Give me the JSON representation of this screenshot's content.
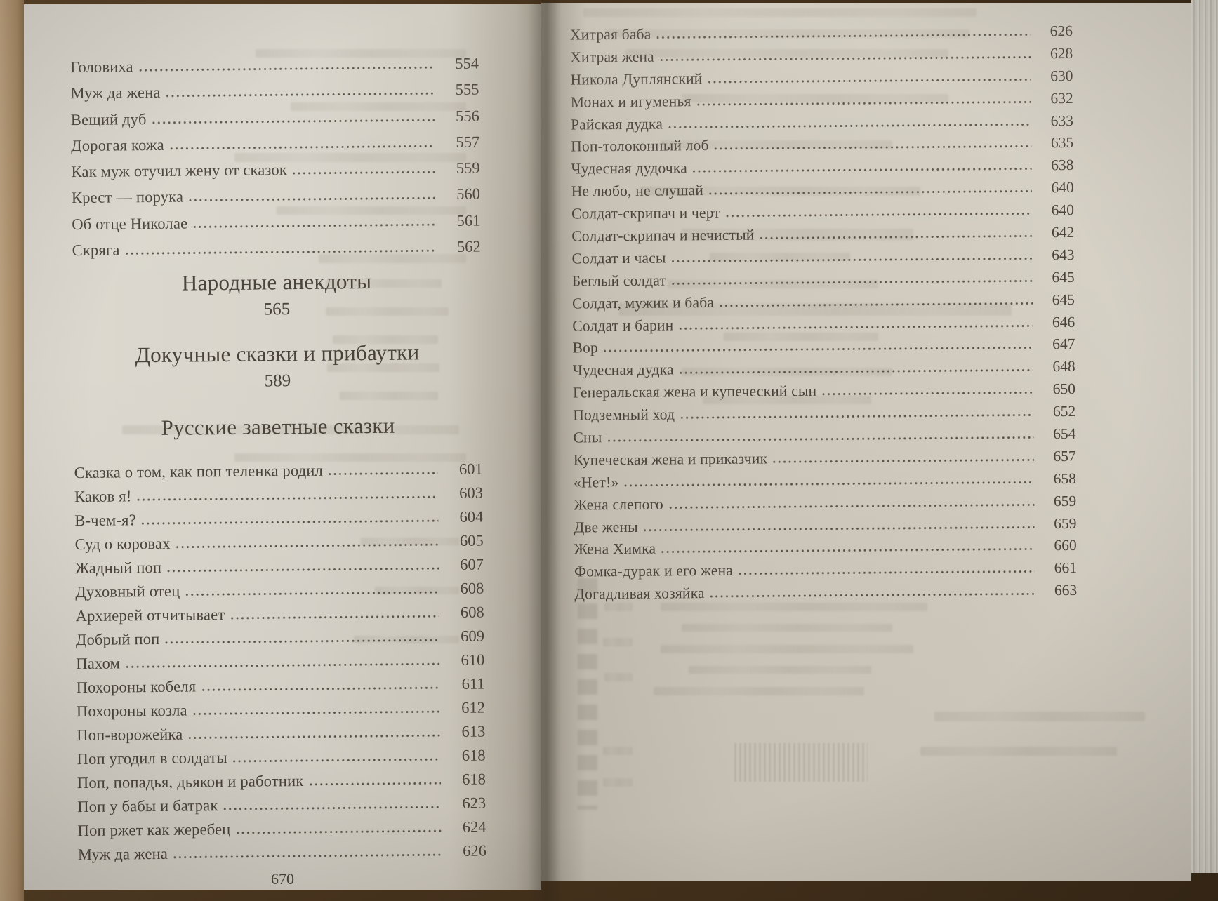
{
  "book": {
    "left_page": {
      "entries_top": [
        {
          "title": "Головиха",
          "page": "554"
        },
        {
          "title": "Муж да жена",
          "page": "555"
        },
        {
          "title": "Вещий дуб",
          "page": "556"
        },
        {
          "title": "Дорогая кожа",
          "page": "557"
        },
        {
          "title": "Как муж отучил жену от сказок",
          "page": "559"
        },
        {
          "title": "Крест — порука",
          "page": "560"
        },
        {
          "title": "Об отце Николае",
          "page": "561"
        },
        {
          "title": "Скряга",
          "page": "562"
        }
      ],
      "section_1": {
        "heading": "Народные анекдоты",
        "page": "565"
      },
      "section_2": {
        "heading": "Докучные сказки и прибаутки",
        "page": "589"
      },
      "section_3": {
        "heading": "Русские заветные сказки"
      },
      "entries_main": [
        {
          "title": "Сказка о том, как поп теленка родил",
          "page": "601"
        },
        {
          "title": "Каков я!",
          "page": "603"
        },
        {
          "title": "В-чем-я?",
          "page": "604"
        },
        {
          "title": "Суд о коровах",
          "page": "605"
        },
        {
          "title": "Жадный поп",
          "page": "607"
        },
        {
          "title": "Духовный отец",
          "page": "608"
        },
        {
          "title": "Архиерей отчитывает",
          "page": "608"
        },
        {
          "title": "Добрый поп",
          "page": "609"
        },
        {
          "title": "Пахом",
          "page": "610"
        },
        {
          "title": "Похороны кобеля",
          "page": "611"
        },
        {
          "title": "Похороны козла",
          "page": "612"
        },
        {
          "title": "Поп-ворожейка",
          "page": "613"
        },
        {
          "title": "Поп угодил в солдаты",
          "page": "618"
        },
        {
          "title": "Поп, попадья, дьякон и работник",
          "page": "618"
        },
        {
          "title": "Поп у бабы и батрак",
          "page": "623"
        },
        {
          "title": "Поп ржет как жеребец",
          "page": "624"
        },
        {
          "title": "Муж да жена",
          "page": "626"
        }
      ],
      "folio": "670"
    },
    "right_page": {
      "entries": [
        {
          "title": "Хитрая баба",
          "page": "626"
        },
        {
          "title": "Хитрая жена",
          "page": "628"
        },
        {
          "title": "Никола Дуплянский",
          "page": "630"
        },
        {
          "title": "Монах и игуменья",
          "page": "632"
        },
        {
          "title": "Райская дудка",
          "page": "633"
        },
        {
          "title": "Поп-толоконный лоб",
          "page": "635"
        },
        {
          "title": "Чудесная дудочка",
          "page": "638"
        },
        {
          "title": "Не любо, не слушай",
          "page": "640"
        },
        {
          "title": "Солдат-скрипач и черт",
          "page": "640"
        },
        {
          "title": "Солдат-скрипач и нечистый",
          "page": "642"
        },
        {
          "title": "Солдат и часы",
          "page": "643"
        },
        {
          "title": "Беглый солдат",
          "page": "645"
        },
        {
          "title": "Солдат, мужик и баба",
          "page": "645"
        },
        {
          "title": "Солдат и барин",
          "page": "646"
        },
        {
          "title": "Вор",
          "page": "647"
        },
        {
          "title": "Чудесная дудка",
          "page": "648"
        },
        {
          "title": "Генеральская жена и купеческий сын",
          "page": "650"
        },
        {
          "title": "Подземный ход",
          "page": "652"
        },
        {
          "title": "Сны",
          "page": "654"
        },
        {
          "title": "Купеческая жена и приказчик",
          "page": "657"
        },
        {
          "title": "«Нет!»",
          "page": "658"
        },
        {
          "title": "Жена слепого",
          "page": "659"
        },
        {
          "title": "Две жены",
          "page": "659"
        },
        {
          "title": "Жена Химка",
          "page": "660"
        },
        {
          "title": "Фомка-дурак и его жена",
          "page": "661"
        },
        {
          "title": "Догадливая хозяйка",
          "page": "663"
        }
      ]
    }
  }
}
